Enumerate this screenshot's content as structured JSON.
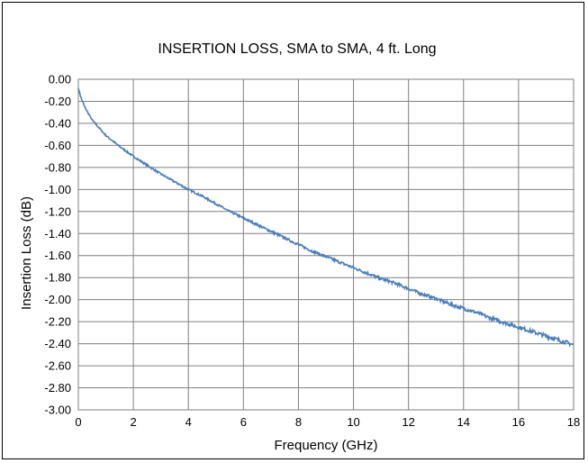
{
  "chart_data": {
    "type": "line",
    "title": "INSERTION LOSS, SMA to SMA, 4 ft. Long",
    "xlabel": "Frequency (GHz)",
    "ylabel": "Insertion Loss (dB)",
    "xlim": [
      0,
      18
    ],
    "ylim": [
      -3.0,
      0.0
    ],
    "x_ticks": [
      "0",
      "2",
      "4",
      "6",
      "8",
      "10",
      "12",
      "14",
      "16",
      "18"
    ],
    "y_ticks": [
      "0.00",
      "-0.20",
      "-0.40",
      "-0.60",
      "-0.80",
      "-1.00",
      "-1.20",
      "-1.40",
      "-1.60",
      "-1.80",
      "-2.00",
      "-2.20",
      "-2.40",
      "-2.60",
      "-2.80",
      "-3.00"
    ],
    "grid": true,
    "legend": "none",
    "line_color": "#4a7ebb",
    "series": [
      {
        "x": [
          0.0,
          0.1,
          0.25,
          0.5,
          0.75,
          1.0,
          1.5,
          2.0,
          2.5,
          3.0,
          3.5,
          4.0,
          4.5,
          5.0,
          5.5,
          6.0,
          6.5,
          7.0,
          7.5,
          8.0,
          8.5,
          9.0,
          9.5,
          10.0,
          10.5,
          11.0,
          11.5,
          12.0,
          12.5,
          13.0,
          13.5,
          14.0,
          14.5,
          15.0,
          15.5,
          16.0,
          16.5,
          17.0,
          17.5,
          18.0
        ],
        "values": [
          -0.08,
          -0.17,
          -0.26,
          -0.37,
          -0.44,
          -0.51,
          -0.61,
          -0.7,
          -0.78,
          -0.86,
          -0.93,
          -1.0,
          -1.06,
          -1.13,
          -1.2,
          -1.26,
          -1.32,
          -1.38,
          -1.44,
          -1.5,
          -1.56,
          -1.61,
          -1.66,
          -1.71,
          -1.76,
          -1.81,
          -1.85,
          -1.9,
          -1.95,
          -1.99,
          -2.04,
          -2.08,
          -2.12,
          -2.17,
          -2.21,
          -2.25,
          -2.29,
          -2.33,
          -2.37,
          -2.41
        ]
      }
    ]
  }
}
